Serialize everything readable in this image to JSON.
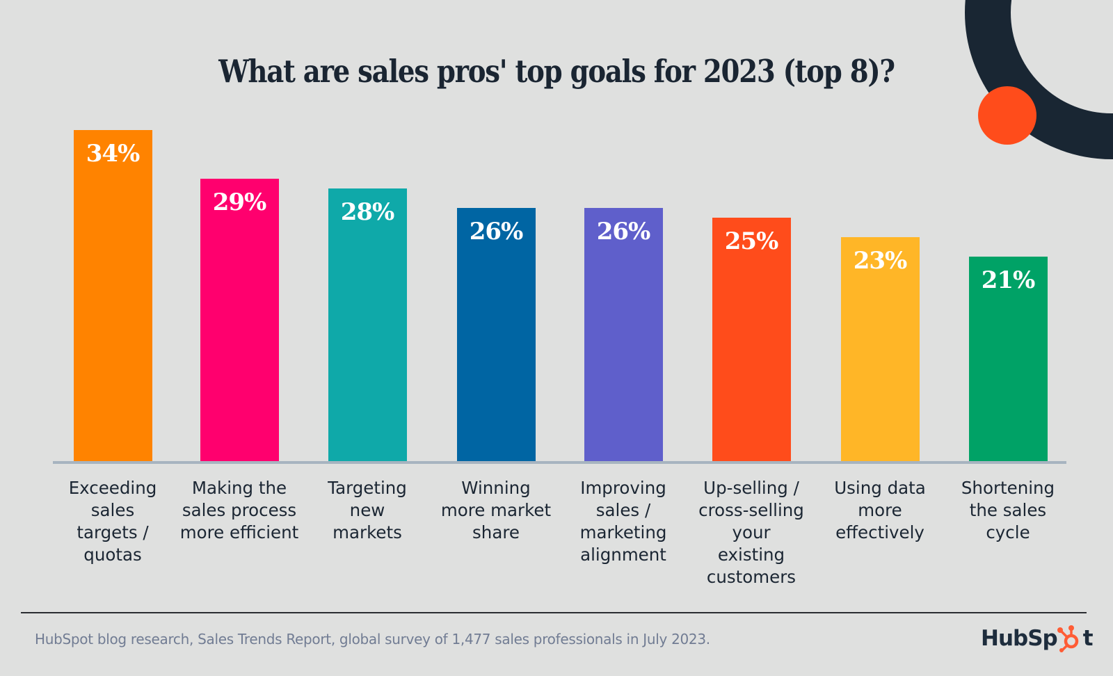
{
  "chart_data": {
    "type": "bar",
    "title": "What are sales pros' top goals for 2023 (top 8)?",
    "xlabel": "",
    "ylabel": "",
    "ylim": [
      0,
      34
    ],
    "grid": false,
    "legend": "none",
    "categories": [
      "Exceeding sales targets / quotas",
      "Making the sales process more efficient",
      "Targeting new markets",
      "Winning more market share",
      "Improving sales / marketing alignment",
      "Up-selling / cross-selling your existing customers",
      "Using data more effectively",
      "Shortening the sales cycle"
    ],
    "category_lines": [
      "Exceeding\nsales\ntargets /\nquotas",
      "Making the\nsales process\nmore efficient",
      "Targeting\nnew\nmarkets",
      "Winning\nmore market\nshare",
      "Improving\nsales /\nmarketing\nalignment",
      "Up-selling /\ncross-selling\nyour\nexisting\ncustomers",
      "Using data\nmore\neffectively",
      "Shortening\nthe sales\ncycle"
    ],
    "values": [
      34,
      29,
      28,
      26,
      26,
      25,
      23,
      21
    ],
    "value_labels": [
      "34%",
      "29%",
      "28%",
      "26%",
      "26%",
      "25%",
      "23%",
      "21%"
    ],
    "unit": "%",
    "colors": [
      "#ff8300",
      "#ff006e",
      "#0fa9a9",
      "#0065a3",
      "#5f5fcb",
      "#ff4c1b",
      "#ffb627",
      "#00a266"
    ]
  },
  "footer": {
    "source": "HubSpot blog research, Sales Trends Report, global survey of 1,477 sales professionals in July 2023.",
    "brand": "HubSpot"
  },
  "theme": {
    "background": "#dfe0df",
    "title_color": "#1a2532",
    "decor_ring": "#192633",
    "decor_dot": "#ff4c1b",
    "brand_dark": "#1e2d3d",
    "brand_accent": "#ff5c35"
  }
}
